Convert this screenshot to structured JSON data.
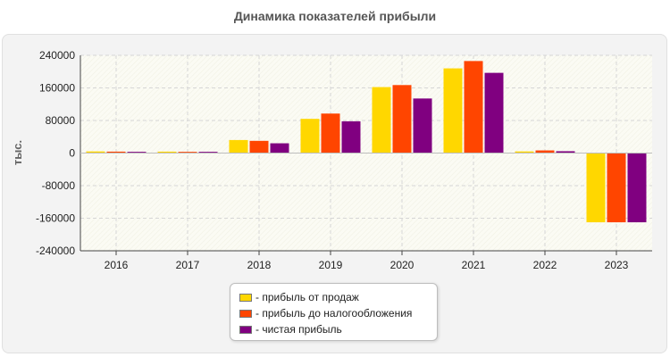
{
  "chart_data": {
    "type": "bar",
    "title": "Динамика показателей прибыли",
    "ylabel": "тыс.",
    "xlabel": "",
    "categories": [
      "2016",
      "2017",
      "2018",
      "2019",
      "2020",
      "2021",
      "2022",
      "2023"
    ],
    "ylim": [
      -240000,
      240000
    ],
    "yticks": [
      "240000",
      "160000",
      "80000",
      "0",
      "-80000",
      "-160000",
      "-240000"
    ],
    "grid": true,
    "legend_position": "bottom",
    "series": [
      {
        "name": "- прибыль от продаж",
        "color": "#FFD700",
        "values": [
          4000,
          3500,
          32000,
          84000,
          162000,
          208000,
          4000,
          -170000
        ]
      },
      {
        "name": "- прибыль до налогообложения",
        "color": "#FF4500",
        "values": [
          3500,
          3000,
          30000,
          97000,
          167000,
          226000,
          6500,
          -170000
        ]
      },
      {
        "name": "- чистая прибыль",
        "color": "#800080",
        "values": [
          3000,
          3000,
          24000,
          78000,
          134000,
          197000,
          4500,
          -170000
        ]
      }
    ]
  }
}
